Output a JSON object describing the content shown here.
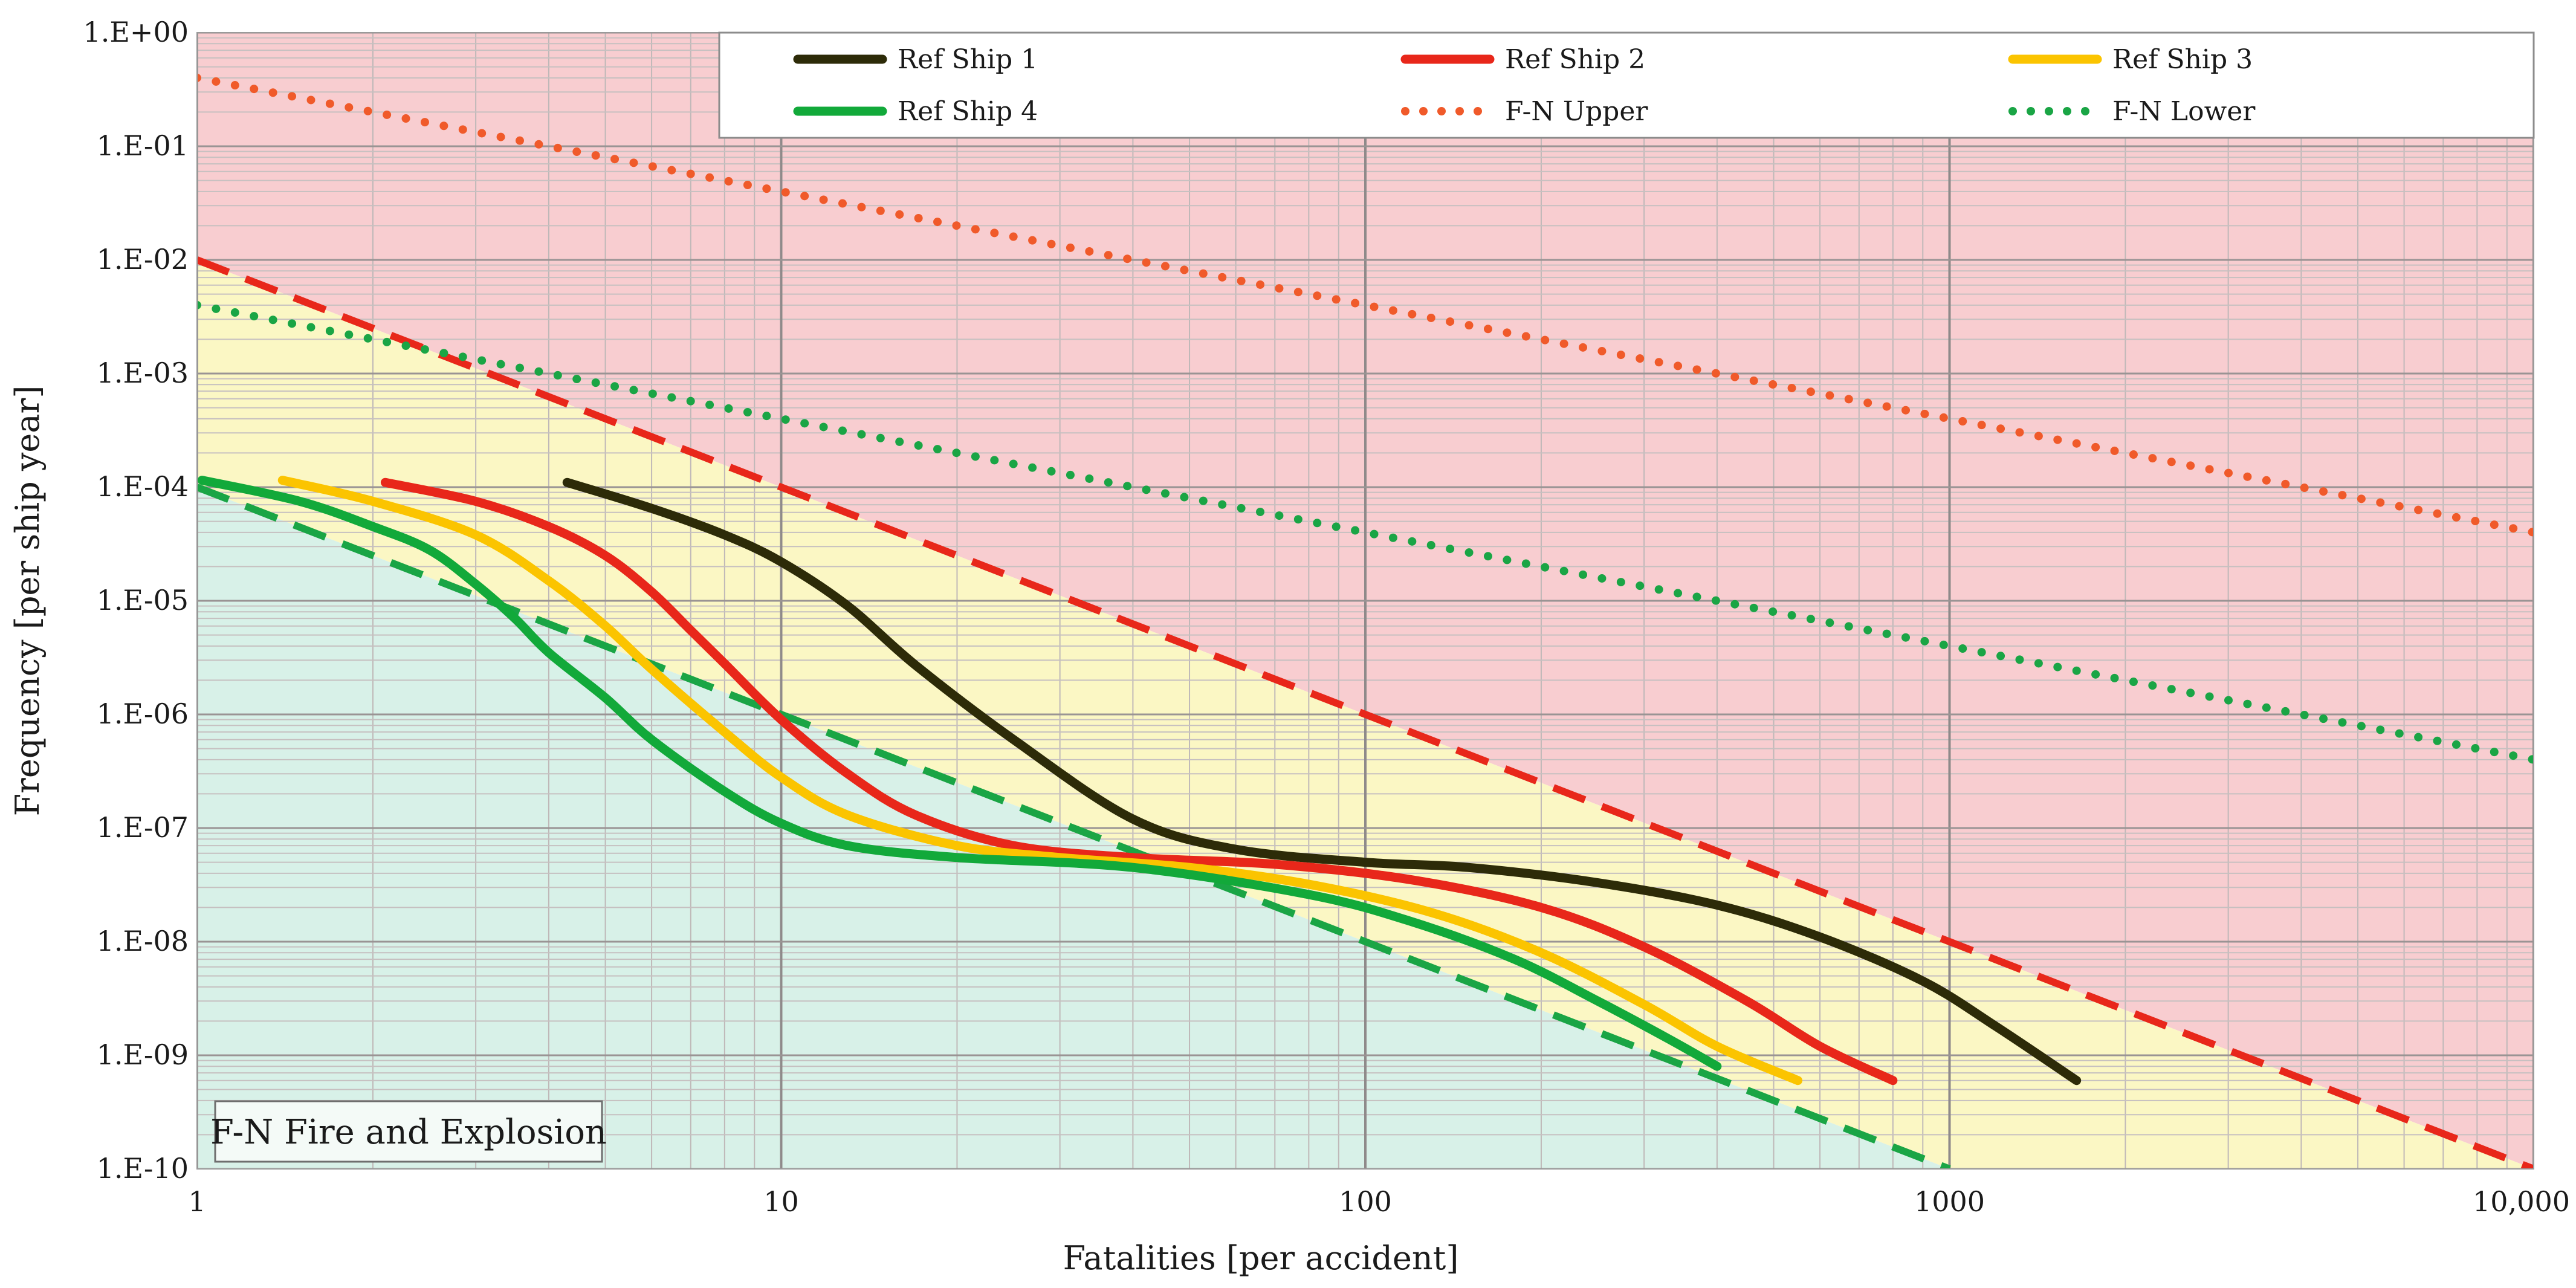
{
  "chart_data": {
    "type": "line",
    "title": "",
    "xlabel": "Fatalities [per accident]",
    "ylabel": "Frequency [per ship year]",
    "xscale": "log",
    "yscale": "log",
    "xlim": [
      1,
      10000
    ],
    "ylim": [
      1e-10,
      1
    ],
    "grid": true,
    "legend_position": "top-right",
    "x_tick_labels": [
      "1",
      "10",
      "100",
      "1000",
      "10,000"
    ],
    "y_tick_labels": [
      "1.E-10",
      "1.E-09",
      "1.E-08",
      "1.E-07",
      "1.E-06",
      "1.E-05",
      "1.E-04",
      "1.E-03",
      "1.E-02",
      "1.E-01",
      "1.E+00"
    ],
    "annotation": "F-N Fire and Explosion",
    "regions": {
      "intolerable_color": "#f8cdd0",
      "alarp_color": "#fbf7c4",
      "negligible_color": "#d8f1e8",
      "upper_boundary": {
        "x": [
          1,
          10000
        ],
        "y": [
          0.01,
          1e-10
        ]
      },
      "lower_boundary": {
        "x": [
          1,
          1000
        ],
        "y": [
          0.0001,
          1e-10
        ]
      }
    },
    "series": [
      {
        "name": "Ref Ship 1",
        "color": "#2d2b08",
        "style": "solid",
        "x": [
          4.3,
          6,
          8,
          10,
          13,
          17,
          25,
          40,
          60,
          100,
          150,
          250,
          400,
          600,
          900,
          1200,
          1650
        ],
        "y": [
          0.00011,
          6.5e-05,
          3.8e-05,
          2.2e-05,
          9e-06,
          2.7e-06,
          6e-07,
          1.2e-07,
          6.5e-08,
          5e-08,
          4.5e-08,
          3.3e-08,
          2.1e-08,
          1.1e-08,
          4.5e-09,
          1.8e-09,
          6e-10
        ]
      },
      {
        "name": "Ref Ship 2",
        "color": "#e8271a",
        "style": "solid",
        "x": [
          2.1,
          3,
          4,
          5,
          6,
          7,
          8,
          10,
          13,
          17,
          25,
          40,
          70,
          120,
          200,
          300,
          450,
          600,
          800
        ],
        "y": [
          0.00011,
          7.5e-05,
          4.5e-05,
          2.5e-05,
          1.2e-05,
          5.5e-06,
          2.8e-06,
          9e-07,
          3e-07,
          1.3e-07,
          7e-08,
          5.5e-08,
          4.8e-08,
          3.5e-08,
          2e-08,
          9e-09,
          3e-09,
          1.2e-09,
          6e-10
        ]
      },
      {
        "name": "Ref Ship 3",
        "color": "#fbc400",
        "style": "solid",
        "x": [
          1.4,
          2,
          3,
          4,
          5,
          6,
          8,
          10,
          13,
          20,
          30,
          50,
          80,
          130,
          200,
          300,
          400,
          550
        ],
        "y": [
          0.000115,
          7.5e-05,
          3.8e-05,
          1.5e-05,
          6e-06,
          2.5e-06,
          7e-07,
          2.8e-07,
          1.3e-07,
          7e-08,
          5.5e-08,
          4.5e-08,
          3.2e-08,
          1.8e-08,
          8e-09,
          2.8e-09,
          1.2e-09,
          6e-10
        ]
      },
      {
        "name": "Ref Ship 4",
        "color": "#12a93a",
        "style": "solid",
        "x": [
          1.02,
          1.5,
          2,
          2.5,
          3,
          3.5,
          4,
          5,
          6,
          8,
          10,
          13,
          20,
          40,
          80,
          120,
          180,
          250,
          330,
          400
        ],
        "y": [
          0.000115,
          7.5e-05,
          4.5e-05,
          2.8e-05,
          1.4e-05,
          7e-06,
          3.5e-06,
          1.4e-06,
          6e-07,
          2.1e-07,
          1.1e-07,
          7e-08,
          5.5e-08,
          4.5e-08,
          2.6e-08,
          1.5e-08,
          7e-09,
          3e-09,
          1.4e-09,
          8e-10
        ]
      },
      {
        "name": "F-N Upper",
        "color": "#f05a2a",
        "style": "dotted",
        "x": [
          1,
          10000
        ],
        "y": [
          0.4,
          4e-05
        ]
      },
      {
        "name": "F-N Lower",
        "color": "#1aa545",
        "style": "dotted",
        "x": [
          1,
          10000
        ],
        "y": [
          0.004,
          4e-07
        ]
      },
      {
        "name": "",
        "color": "#e8271a",
        "style": "dashed",
        "x": [
          1,
          10000
        ],
        "y": [
          0.01,
          1e-10
        ]
      },
      {
        "name": "",
        "color": "#1aa545",
        "style": "dashed",
        "x": [
          1,
          1000
        ],
        "y": [
          0.0001,
          1e-10
        ]
      }
    ]
  }
}
